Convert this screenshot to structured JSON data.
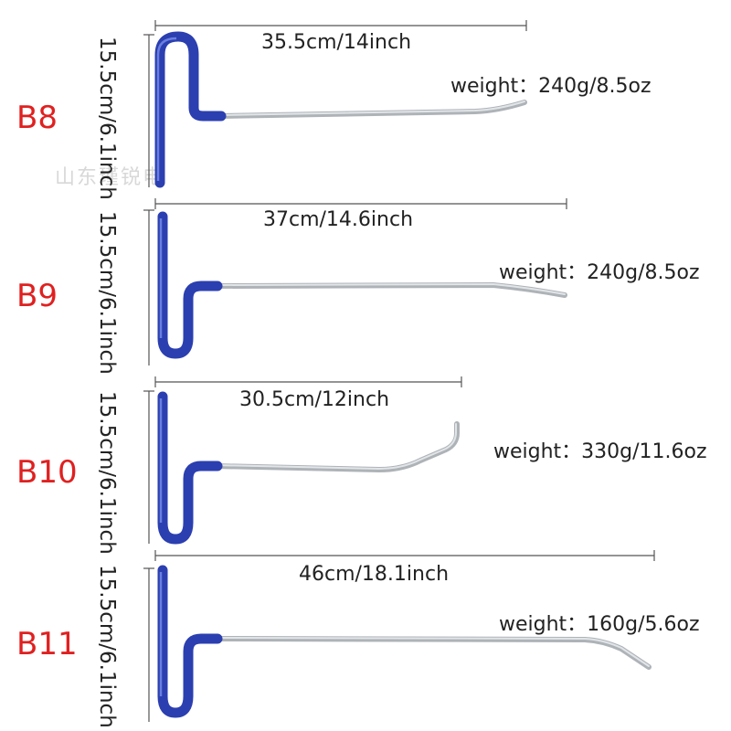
{
  "watermark": "山东瑾锐电",
  "colors": {
    "handle": "#2b3fb0",
    "rod": "#b8bcc0",
    "model_label": "#e02020"
  },
  "tools": [
    {
      "model": "B8",
      "height": "15.5cm/6.1inch",
      "length": "35.5cm/14inch",
      "weight": "weight：240g/8.5oz"
    },
    {
      "model": "B9",
      "height": "15.5cm/6.1inch",
      "length": "37cm/14.6inch",
      "weight": "weight：240g/8.5oz"
    },
    {
      "model": "B10",
      "height": "15.5cm/6.1inch",
      "length": "30.5cm/12inch",
      "weight": "weight：330g/11.6oz"
    },
    {
      "model": "B11",
      "height": "15.5cm/6.1inch",
      "length": "46cm/18.1inch",
      "weight": "weight：160g/5.6oz"
    }
  ]
}
